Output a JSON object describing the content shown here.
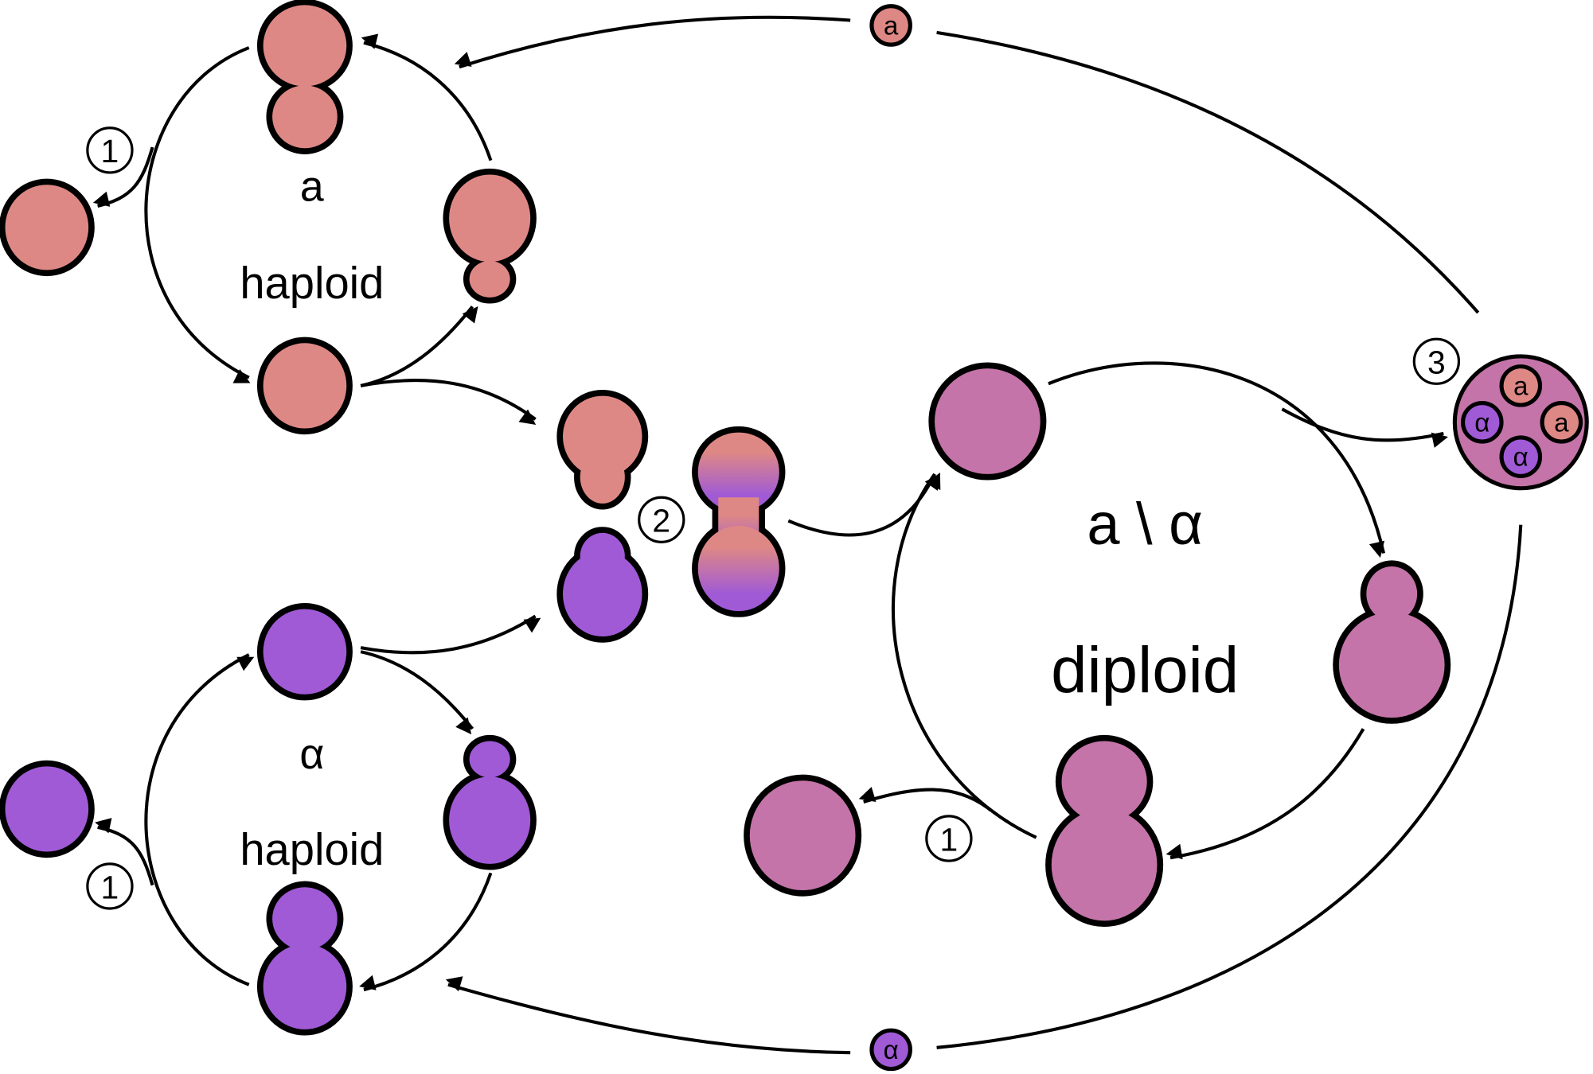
{
  "colors": {
    "a": "#DE8885",
    "alpha": "#A05AD6",
    "diploid": "#C474A8",
    "outline": "#000000"
  },
  "a_cycle": {
    "mating_type": "a",
    "ploidy": "haploid"
  },
  "alpha_cycle": {
    "mating_type": "α",
    "ploidy": "haploid"
  },
  "diploid_cycle": {
    "mating_type": "a \\ α",
    "ploidy": "diploid"
  },
  "steps": {
    "budding": "1",
    "mating": "2",
    "sporulation": "3"
  },
  "spores": {
    "a": "a",
    "alpha": "α"
  }
}
